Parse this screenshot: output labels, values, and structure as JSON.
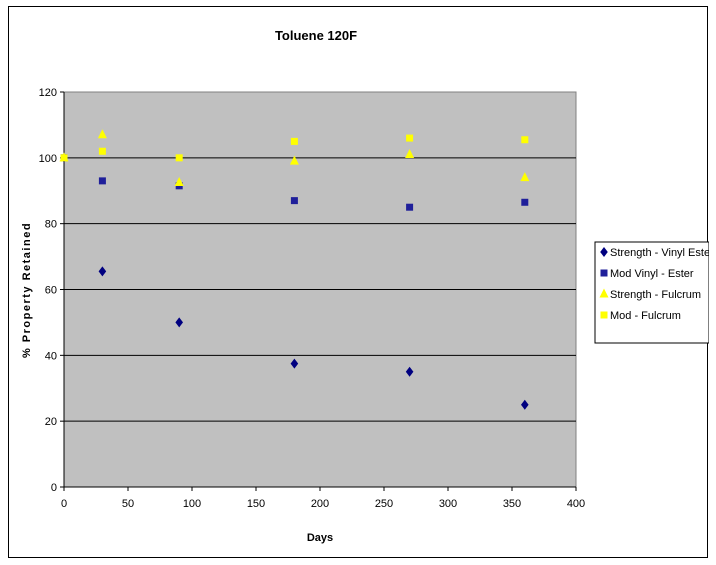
{
  "chart_data": {
    "type": "scatter",
    "title": "Toluene 120F",
    "xlabel": "Days",
    "ylabel": "% Property Retained",
    "xlim": [
      0,
      400
    ],
    "ylim": [
      0,
      120
    ],
    "x_ticks": [
      "0",
      "50",
      "100",
      "150",
      "200",
      "250",
      "300",
      "350",
      "400"
    ],
    "y_ticks": [
      "0",
      "20",
      "40",
      "60",
      "80",
      "100",
      "120"
    ],
    "grid": "horizontal",
    "plot_background": "#c0c0c0",
    "legend_position": "right",
    "series": [
      {
        "name": "Strength - Vinyl Ester",
        "marker": "diamond",
        "color": "#000080",
        "x": [
          0,
          30,
          90,
          180,
          270,
          360
        ],
        "y": [
          100,
          65.5,
          50,
          37.5,
          35,
          25
        ]
      },
      {
        "name": "Mod Vinyl - Ester",
        "marker": "square",
        "color": "#1f1f9a",
        "x": [
          0,
          30,
          90,
          180,
          270,
          360
        ],
        "y": [
          100,
          93,
          91.5,
          87,
          85,
          86.5
        ]
      },
      {
        "name": "Strength - Fulcrum",
        "marker": "triangle",
        "color": "#ffff00",
        "x": [
          0,
          30,
          90,
          180,
          270,
          360
        ],
        "y": [
          100,
          107,
          92.5,
          99,
          101,
          94
        ]
      },
      {
        "name": "Mod - Fulcrum",
        "marker": "square",
        "color": "#ffff00",
        "x": [
          0,
          30,
          90,
          180,
          270,
          360
        ],
        "y": [
          100,
          102,
          100,
          105,
          106,
          105.5
        ]
      }
    ]
  }
}
